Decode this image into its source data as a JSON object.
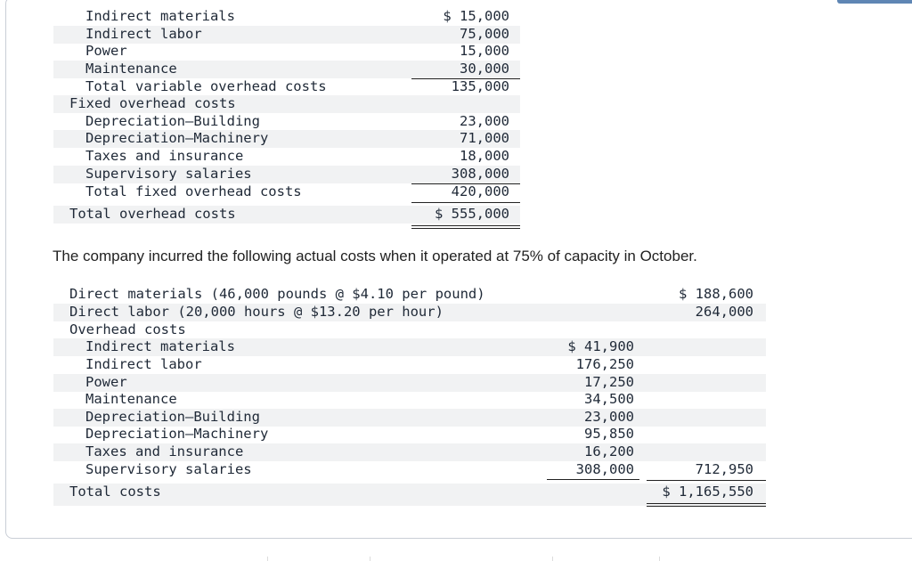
{
  "table1": {
    "rows": [
      {
        "label": "Indirect materials",
        "indent": 1,
        "value": "$ 15,000"
      },
      {
        "label": "Indirect labor",
        "indent": 1,
        "value": "75,000"
      },
      {
        "label": "Power",
        "indent": 1,
        "value": "15,000"
      },
      {
        "label": "Maintenance",
        "indent": 1,
        "value": "30,000"
      },
      {
        "label": "Total variable overhead costs",
        "indent": 1,
        "value": "135,000"
      },
      {
        "label": "Fixed overhead costs",
        "indent": 0,
        "value": ""
      },
      {
        "label": "Depreciation—Building",
        "indent": 1,
        "value": "23,000"
      },
      {
        "label": "Depreciation—Machinery",
        "indent": 1,
        "value": "71,000"
      },
      {
        "label": "Taxes and insurance",
        "indent": 1,
        "value": "18,000"
      },
      {
        "label": "Supervisory salaries",
        "indent": 1,
        "value": "308,000"
      },
      {
        "label": "Total fixed overhead costs",
        "indent": 1,
        "value": "420,000"
      },
      {
        "label": "Total overhead costs",
        "indent": 0,
        "value": "$ 555,000"
      }
    ]
  },
  "intro_text": "The company incurred the following actual costs when it operated at 75% of capacity in October.",
  "table2": {
    "rows": [
      {
        "label": "Direct materials (46,000 pounds @ $4.10 per pound)",
        "indent": 0,
        "col1": "",
        "col2": "$ 188,600"
      },
      {
        "label": "Direct labor (20,000 hours @ $13.20 per hour)",
        "indent": 0,
        "col1": "",
        "col2": "264,000"
      },
      {
        "label": "Overhead costs",
        "indent": 0,
        "col1": "",
        "col2": ""
      },
      {
        "label": "Indirect materials",
        "indent": 1,
        "col1": "$ 41,900",
        "col2": ""
      },
      {
        "label": "Indirect labor",
        "indent": 1,
        "col1": "176,250",
        "col2": ""
      },
      {
        "label": "Power",
        "indent": 1,
        "col1": "17,250",
        "col2": ""
      },
      {
        "label": "Maintenance",
        "indent": 1,
        "col1": "34,500",
        "col2": ""
      },
      {
        "label": "Depreciation—Building",
        "indent": 1,
        "col1": "23,000",
        "col2": ""
      },
      {
        "label": "Depreciation—Machinery",
        "indent": 1,
        "col1": "95,850",
        "col2": ""
      },
      {
        "label": "Taxes and insurance",
        "indent": 1,
        "col1": "16,200",
        "col2": ""
      },
      {
        "label": "Supervisory salaries",
        "indent": 1,
        "col1": "308,000",
        "col2": "712,950"
      },
      {
        "label": "Total costs",
        "indent": 0,
        "col1": "",
        "col2": "$ 1,165,550"
      }
    ]
  }
}
